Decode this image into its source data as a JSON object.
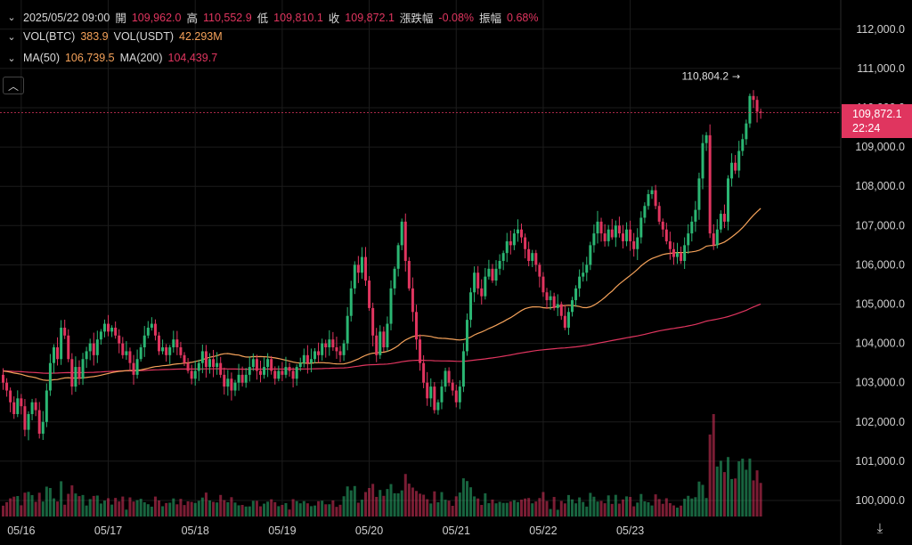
{
  "header": {
    "row1": {
      "datetime": "2025/05/22 09:00",
      "open_label": "開",
      "open": "109,962.0",
      "high_label": "高",
      "high": "110,552.9",
      "low_label": "低",
      "low": "109,810.1",
      "close_label": "收",
      "close": "109,872.1",
      "change_label": "漲跌幅",
      "change": "-0.08%",
      "amp_label": "振幅",
      "amp": "0.68%"
    },
    "row2": {
      "vol_btc_label": "VOL(BTC)",
      "vol_btc": "383.9",
      "vol_usdt_label": "VOL(USDT)",
      "vol_usdt": "42.293M"
    },
    "row3": {
      "ma50_label": "MA(50)",
      "ma50": "106,739.5",
      "ma200_label": "MA(200)",
      "ma200": "104,439.7"
    }
  },
  "price_tag": {
    "price": "109,872.1",
    "countdown": "22:24"
  },
  "colors": {
    "up": "#2bb673",
    "down": "#e0355f",
    "ma50": "#f5a25a",
    "ma200": "#e0355f",
    "grid": "#1c1c1c"
  },
  "chart_data": {
    "type": "candlestick",
    "x_tick_labels": [
      "05/16",
      "05/17",
      "05/18",
      "05/19",
      "05/20",
      "05/21",
      "05/22",
      "05/23"
    ],
    "y_tick_labels": [
      "100,000.0",
      "101,000.0",
      "102,000.0",
      "103,000.0",
      "104,000.0",
      "105,000.0",
      "106,000.0",
      "107,000.0",
      "108,000.0",
      "109,000.0",
      "110,000.0",
      "111,000.0",
      "112,000.0"
    ],
    "ylim": [
      99700,
      112600
    ],
    "x_start": "2025/05/15 19:00",
    "candle_interval_hours": 1,
    "last_price": 109872.1,
    "max_marker": {
      "value": 110804.2,
      "label": "110,804.2"
    },
    "closes": [
      103000,
      102800,
      102500,
      102200,
      102600,
      102400,
      101800,
      102200,
      102500,
      102300,
      101700,
      102000,
      102800,
      103500,
      103900,
      103600,
      104400,
      104200,
      103600,
      102900,
      103400,
      103100,
      103600,
      103800,
      104000,
      103700,
      104100,
      104300,
      104500,
      104300,
      104400,
      104200,
      104000,
      103700,
      103800,
      103500,
      103200,
      103600,
      103900,
      104200,
      104400,
      104500,
      104200,
      103800,
      103900,
      103700,
      103900,
      104100,
      103900,
      103700,
      103500,
      103300,
      103100,
      103300,
      103500,
      103800,
      103400,
      103600,
      103400,
      103500,
      103200,
      102900,
      103100,
      102800,
      103000,
      103200,
      103000,
      103200,
      103400,
      103600,
      103300,
      103200,
      103400,
      103600,
      103300,
      103100,
      103300,
      103200,
      103400,
      103300,
      103100,
      103400,
      103500,
      103700,
      103500,
      103600,
      103800,
      103700,
      104000,
      103900,
      104100,
      103900,
      103800,
      103700,
      104000,
      104700,
      105400,
      106000,
      105800,
      106200,
      105600,
      104900,
      104200,
      103700,
      104300,
      103900,
      104500,
      105400,
      105900,
      106500,
      107100,
      106100,
      105400,
      104800,
      104100,
      103500,
      103000,
      102600,
      102900,
      102300,
      102500,
      102900,
      103300,
      103000,
      102800,
      102500,
      102900,
      103800,
      104600,
      105300,
      105800,
      105400,
      105200,
      105700,
      105900,
      105600,
      105900,
      106100,
      106300,
      106600,
      106500,
      106800,
      106900,
      106700,
      106400,
      106100,
      106300,
      106000,
      105700,
      105300,
      105100,
      105200,
      104900,
      105000,
      104700,
      104400,
      104800,
      105100,
      105400,
      105700,
      105800,
      106000,
      106500,
      106800,
      107100,
      106800,
      106600,
      106900,
      106700,
      107000,
      106800,
      106600,
      106900,
      106600,
      106400,
      106700,
      107200,
      107500,
      107800,
      107900,
      107500,
      107100,
      106900,
      106600,
      106400,
      106200,
      106300,
      106100,
      106500,
      106800,
      107100,
      107400,
      108200,
      109100,
      109300,
      106800,
      106500,
      106900,
      107300,
      107100,
      108200,
      108600,
      108400,
      108900,
      109200,
      109600,
      110300,
      110200,
      109900,
      109872
    ]
  }
}
